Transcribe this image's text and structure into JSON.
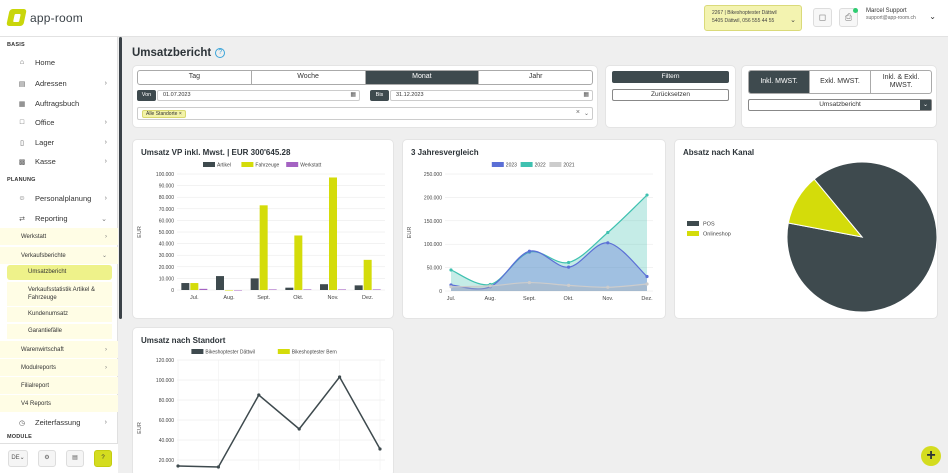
{
  "app": {
    "logo_text": "app‑room"
  },
  "topbar": {
    "branch_line1": "2267 | Bikeshoptester Dättwil",
    "branch_line2": "5405 Dättwil, 056 555 44 55",
    "user_name": "Marcel Support",
    "user_email": "support@app-room.ch"
  },
  "sidebar": {
    "sections": [
      "BASIS",
      "PLANUNG",
      "MODULE"
    ],
    "items": [
      {
        "label": "Home",
        "icon": "home-icon"
      },
      {
        "label": "Adressen",
        "icon": "address-book-icon"
      },
      {
        "label": "Auftragsbuch",
        "icon": "calendar-icon"
      },
      {
        "label": "Office",
        "icon": "document-icon"
      },
      {
        "label": "Lager",
        "icon": "warehouse-icon"
      },
      {
        "label": "Kasse",
        "icon": "cash-register-icon"
      },
      {
        "label": "Personalplanung",
        "icon": "people-icon"
      },
      {
        "label": "Reporting",
        "icon": "swap-icon"
      },
      {
        "label": "Zeiterfassung",
        "icon": "clock-icon"
      }
    ],
    "sub_items": [
      "Werkstatt",
      "Verkaufsberichte",
      "Warenwirtschaft",
      "Modulreports",
      "Filialreport",
      "V4 Reports"
    ],
    "sub2_items": [
      "Umsatzbericht",
      "Verkaufsstatistik Artikel & Fahrzeuge",
      "Kundenumsatz",
      "Garantiefälle"
    ],
    "lang": "DE",
    "help": "?"
  },
  "page": {
    "title": "Umsatzbericht"
  },
  "filters": {
    "periods": [
      "Tag",
      "Woche",
      "Monat",
      "Jahr"
    ],
    "active_period": "Monat",
    "from_label": "Von",
    "from_value": "01.07.2023",
    "to_label": "Bis",
    "to_value": "31.12.2023",
    "location_tag": "Alle Standorte",
    "filter_button": "Filtern",
    "reset_button": "Zurücksetzen",
    "tax_options": [
      "Inkl. MWST.",
      "Exkl. MWST.",
      "Inkl. & Exkl. MWST."
    ],
    "active_tax": "Inkl. MWST.",
    "report_select": "Umsatzbericht"
  },
  "chart_data": [
    {
      "type": "bar",
      "title": "Umsatz VP inkl. Mwst. | EUR 300'645.28",
      "ylabel": "EUR",
      "ylim": [
        0,
        100000
      ],
      "yticks": [
        0,
        10000,
        20000,
        30000,
        40000,
        50000,
        60000,
        70000,
        80000,
        90000,
        100000
      ],
      "ytick_labels": [
        "0",
        "10.000",
        "20.000",
        "30.000",
        "40.000",
        "50.000",
        "60.000",
        "70.000",
        "80.000",
        "90.000",
        "100.000"
      ],
      "categories": [
        "Jul.",
        "Aug.",
        "Sept.",
        "Okt.",
        "Nov.",
        "Dez."
      ],
      "legend_position": "top",
      "series": [
        {
          "name": "Artikel",
          "color": "#3e4a4e",
          "values": [
            6000,
            12000,
            10000,
            2000,
            5000,
            4000
          ]
        },
        {
          "name": "Fahrzeuge",
          "color": "#d4dc0a",
          "values": [
            6000,
            0,
            73000,
            47000,
            97000,
            26000
          ]
        },
        {
          "name": "Werkstatt",
          "color": "#a463c2",
          "values": [
            1000,
            0,
            500,
            500,
            500,
            500
          ]
        }
      ]
    },
    {
      "type": "area",
      "title": "3 Jahresvergleich",
      "ylabel": "EUR",
      "ylim": [
        0,
        250000
      ],
      "yticks": [
        0,
        50000,
        100000,
        150000,
        200000,
        250000
      ],
      "ytick_labels": [
        "0",
        "50.000",
        "100.000",
        "150.000",
        "200.000",
        "250.000"
      ],
      "categories": [
        "Jul.",
        "Aug.",
        "Sept.",
        "Okt.",
        "Nov.",
        "Dez."
      ],
      "legend_position": "top",
      "series": [
        {
          "name": "2023",
          "color": "#5b6fd6",
          "values": [
            13000,
            9000,
            85000,
            51000,
            103000,
            31000
          ]
        },
        {
          "name": "2022",
          "color": "#3fc1b0",
          "values": [
            45000,
            14000,
            83000,
            61000,
            125000,
            205000
          ]
        },
        {
          "name": "2021",
          "color": "#cccccc",
          "values": [
            9000,
            11000,
            18000,
            12000,
            8000,
            15000
          ]
        }
      ]
    },
    {
      "type": "pie",
      "title": "Absatz nach Kanal",
      "legend_position": "left",
      "slices": [
        {
          "name": "POS",
          "color": "#3e4a4e",
          "value": 89
        },
        {
          "name": "Onlineshop",
          "color": "#d4dc0a",
          "value": 11
        }
      ]
    },
    {
      "type": "line",
      "title": "Umsatz nach Standort",
      "ylabel": "EUR",
      "yticks": [
        20000,
        40000,
        60000,
        80000,
        100000,
        120000
      ],
      "ytick_labels": [
        "20.000",
        "40.000",
        "60.000",
        "80.000",
        "100.000",
        "120.000"
      ],
      "legend_position": "top",
      "series": [
        {
          "name": "Bikeshoptester Dättwil",
          "color": "#3e4a4e",
          "values": [
            14000,
            13000,
            85000,
            51000,
            103000,
            31000
          ]
        },
        {
          "name": "Bikeshoptester Bern",
          "color": "#d4dc0a",
          "values": []
        }
      ]
    }
  ]
}
